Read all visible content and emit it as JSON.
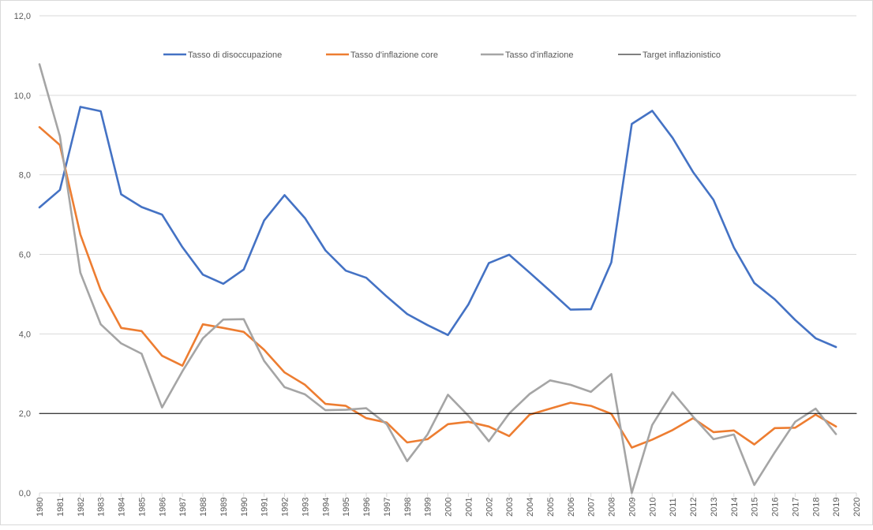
{
  "chart_data": {
    "type": "line",
    "title": "",
    "xlabel": "",
    "ylabel": "",
    "ylim": [
      0,
      12
    ],
    "y_ticks": [
      "0,0",
      "2,0",
      "4,0",
      "6,0",
      "8,0",
      "10,0",
      "12,0"
    ],
    "x_ticks": [
      "1980",
      "1981",
      "1982",
      "1983",
      "1984",
      "1985",
      "1986",
      "1987",
      "1988",
      "1989",
      "1990",
      "1991",
      "1992",
      "1993",
      "1994",
      "1995",
      "1996",
      "1997",
      "1998",
      "1999",
      "2000",
      "2001",
      "2002",
      "2003",
      "2004",
      "2005",
      "2006",
      "2007",
      "2008",
      "2009",
      "2010",
      "2011",
      "2012",
      "2013",
      "2014",
      "2015",
      "2016",
      "2017",
      "2018",
      "2019",
      "2020"
    ],
    "x": [
      1980,
      1981,
      1982,
      1983,
      1984,
      1985,
      1986,
      1987,
      1988,
      1989,
      1990,
      1991,
      1992,
      1993,
      1994,
      1995,
      1996,
      1997,
      1998,
      1999,
      2000,
      2001,
      2002,
      2003,
      2004,
      2005,
      2006,
      2007,
      2008,
      2009,
      2010,
      2011,
      2012,
      2013,
      2014,
      2015,
      2016,
      2017,
      2018,
      2019
    ],
    "grid": "horizontal",
    "legend_position": "top",
    "series": [
      {
        "name": "Tasso di disoccupazione",
        "color": "#4472c4",
        "values": [
          7.18,
          7.62,
          9.71,
          9.6,
          7.51,
          7.19,
          7.0,
          6.18,
          5.49,
          5.26,
          5.62,
          6.85,
          7.49,
          6.91,
          6.1,
          5.59,
          5.41,
          4.94,
          4.5,
          4.22,
          3.97,
          4.74,
          5.78,
          5.99,
          5.54,
          5.08,
          4.61,
          4.62,
          5.8,
          9.28,
          9.61,
          8.93,
          8.07,
          7.37,
          6.17,
          5.28,
          4.87,
          4.35,
          3.89,
          3.67
        ]
      },
      {
        "name": "Tasso d'inflazione core",
        "color": "#ed7d31",
        "values": [
          9.2,
          8.75,
          6.5,
          5.1,
          4.15,
          4.07,
          3.45,
          3.2,
          4.24,
          4.15,
          4.05,
          3.6,
          3.03,
          2.72,
          2.24,
          2.19,
          1.88,
          1.77,
          1.27,
          1.35,
          1.73,
          1.79,
          1.67,
          1.43,
          1.97,
          2.12,
          2.27,
          2.19,
          1.99,
          1.14,
          1.34,
          1.58,
          1.88,
          1.53,
          1.57,
          1.22,
          1.63,
          1.64,
          1.97,
          1.67
        ]
      },
      {
        "name": "Tasso d'inflazione",
        "color": "#a5a5a5",
        "values": [
          10.78,
          8.97,
          5.54,
          4.24,
          3.76,
          3.5,
          2.15,
          3.06,
          3.89,
          4.36,
          4.37,
          3.32,
          2.66,
          2.48,
          2.08,
          2.09,
          2.13,
          1.73,
          0.8,
          1.47,
          2.47,
          1.94,
          1.3,
          2.0,
          2.49,
          2.83,
          2.72,
          2.54,
          2.99,
          -0.12,
          1.71,
          2.53,
          1.92,
          1.35,
          1.47,
          0.2,
          1.02,
          1.79,
          2.12,
          1.48
        ]
      },
      {
        "name": "Target inflazionistico",
        "color": "#000000",
        "values": [
          2,
          2,
          2,
          2,
          2,
          2,
          2,
          2,
          2,
          2,
          2,
          2,
          2,
          2,
          2,
          2,
          2,
          2,
          2,
          2,
          2,
          2,
          2,
          2,
          2,
          2,
          2,
          2,
          2,
          2,
          2,
          2,
          2,
          2,
          2,
          2,
          2,
          2,
          2,
          2
        ]
      }
    ]
  }
}
